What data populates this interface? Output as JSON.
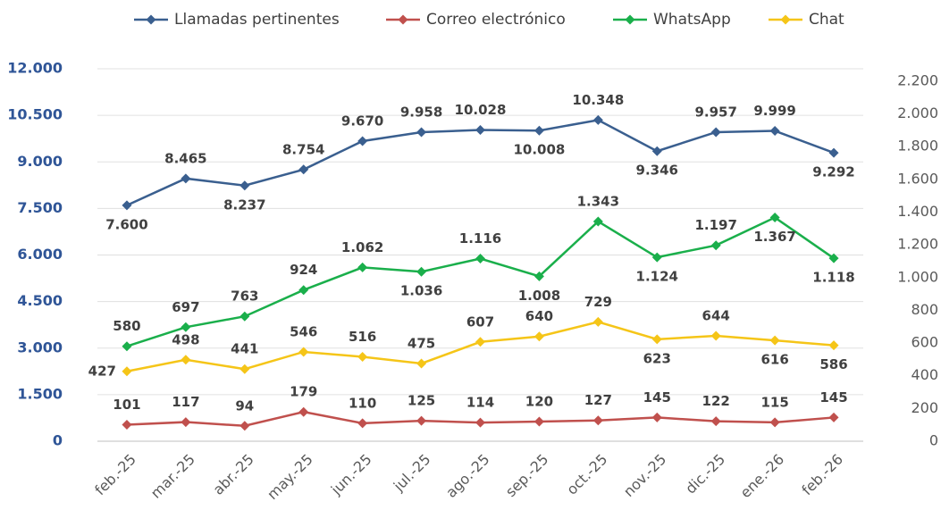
{
  "chart_data": {
    "type": "line",
    "categories": [
      "feb.-25",
      "mar.-25",
      "abr.-25",
      "may.-25",
      "jun.-25",
      "jul.-25",
      "ago.-25",
      "sep.-25",
      "oct.-25",
      "nov.-25",
      "dic.-25",
      "ene.-26",
      "feb.-26"
    ],
    "series": [
      {
        "name": "Llamadas pertinentes",
        "color": "#3a5f8f",
        "axis": "y",
        "values": [
          7600,
          8465,
          8237,
          8754,
          9670,
          9958,
          10028,
          10008,
          10348,
          9346,
          9957,
          9999,
          9292
        ],
        "value_labels": [
          "7.600",
          "8.465",
          "8.237",
          "8.754",
          "9.670",
          "9.958",
          "10.028",
          "10.008",
          "10.348",
          "9.346",
          "9.957",
          "9.999",
          "9.292"
        ]
      },
      {
        "name": "Correo electrónico",
        "color": "#c0504d",
        "axis": "y2",
        "values": [
          101,
          117,
          94,
          179,
          110,
          125,
          114,
          120,
          127,
          145,
          122,
          115,
          145
        ]
      },
      {
        "name": "WhatsApp",
        "color": "#1aaf4b",
        "axis": "y2",
        "values": [
          580,
          697,
          763,
          924,
          1062,
          1036,
          1116,
          1008,
          1343,
          1124,
          1197,
          1367,
          1118
        ],
        "value_labels": [
          "580",
          "697",
          "763",
          "924",
          "1.062",
          "1.036",
          "1.116",
          "1.008",
          "1.343",
          "1.124",
          "1.197",
          "1.367",
          "1.118"
        ]
      },
      {
        "name": "Chat",
        "color": "#f5c518",
        "axis": "y2",
        "values": [
          427,
          498,
          441,
          546,
          516,
          475,
          607,
          640,
          729,
          623,
          644,
          616,
          586
        ]
      }
    ],
    "ylim": [
      0,
      12000
    ],
    "yticks": [
      0,
      {
        "value": 1500,
        "label": "1.500"
      },
      {
        "value": 3000,
        "label": "3.000"
      },
      {
        "value": 4500,
        "label": "4.500"
      },
      {
        "value": 6000,
        "label": "6.000"
      },
      {
        "value": 7500,
        "label": "7.500"
      },
      {
        "value": 9000,
        "label": "9.000"
      },
      {
        "value": 10500,
        "label": "10.500"
      },
      {
        "value": 12000,
        "label": "12.000"
      }
    ],
    "y2lim": [
      0,
      2276
    ],
    "y2ticks": [
      0,
      200,
      400,
      600,
      800,
      {
        "value": 1000,
        "label": "1.000"
      },
      {
        "value": 1200,
        "label": "1.200"
      },
      {
        "value": 1400,
        "label": "1.400"
      },
      {
        "value": 1600,
        "label": "1.600"
      },
      {
        "value": 1800,
        "label": "1.800"
      },
      {
        "value": 2000,
        "label": "2.000"
      },
      {
        "value": 2200,
        "label": "2.200"
      }
    ],
    "grid": true,
    "legend": "top"
  }
}
